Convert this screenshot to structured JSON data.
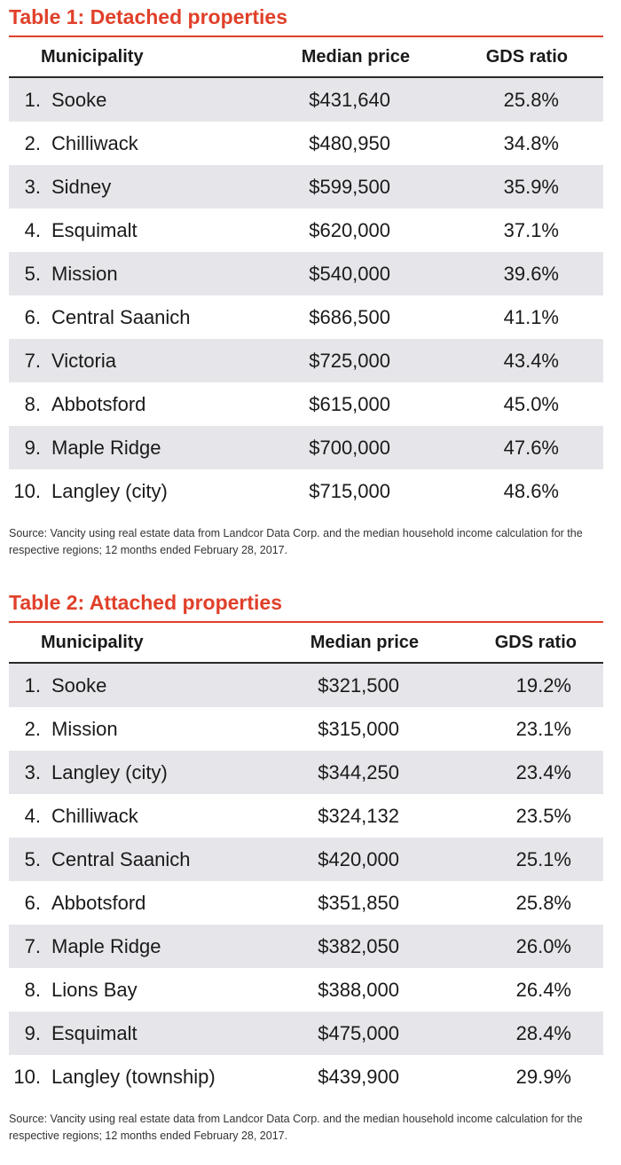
{
  "tables": [
    {
      "title": "Table 1: Detached properties",
      "headers": {
        "municipality": "Municipality",
        "median_price": "Median price",
        "gds_ratio": "GDS ratio"
      },
      "rows": [
        {
          "rank": "1.",
          "municipality": "Sooke",
          "price": "$431,640",
          "gds": "25.8%"
        },
        {
          "rank": "2.",
          "municipality": "Chilliwack",
          "price": "$480,950",
          "gds": "34.8%"
        },
        {
          "rank": "3.",
          "municipality": "Sidney",
          "price": "$599,500",
          "gds": "35.9%"
        },
        {
          "rank": "4.",
          "municipality": "Esquimalt",
          "price": "$620,000",
          "gds": "37.1%"
        },
        {
          "rank": "5.",
          "municipality": "Mission",
          "price": "$540,000",
          "gds": "39.6%"
        },
        {
          "rank": "6.",
          "municipality": "Central Saanich",
          "price": "$686,500",
          "gds": "41.1%"
        },
        {
          "rank": "7.",
          "municipality": "Victoria",
          "price": "$725,000",
          "gds": "43.4%"
        },
        {
          "rank": "8.",
          "municipality": "Abbotsford",
          "price": "$615,000",
          "gds": "45.0%"
        },
        {
          "rank": "9.",
          "municipality": "Maple Ridge",
          "price": "$700,000",
          "gds": "47.6%"
        },
        {
          "rank": "10.",
          "municipality": "Langley (city)",
          "price": "$715,000",
          "gds": "48.6%"
        }
      ],
      "source": "Source: Vancity using real estate data from Landcor Data Corp. and the median household income calculation for the respective regions; 12 months ended February 28, 2017."
    },
    {
      "title": "Table 2: Attached properties",
      "headers": {
        "municipality": "Municipality",
        "median_price": "Median price",
        "gds_ratio": "GDS ratio"
      },
      "rows": [
        {
          "rank": "1.",
          "municipality": "Sooke",
          "price": "$321,500",
          "gds": "19.2%"
        },
        {
          "rank": "2.",
          "municipality": "Mission",
          "price": "$315,000",
          "gds": "23.1%"
        },
        {
          "rank": "3.",
          "municipality": "Langley (city)",
          "price": "$344,250",
          "gds": "23.4%"
        },
        {
          "rank": "4.",
          "municipality": "Chilliwack",
          "price": "$324,132",
          "gds": "23.5%"
        },
        {
          "rank": "5.",
          "municipality": "Central Saanich",
          "price": "$420,000",
          "gds": "25.1%"
        },
        {
          "rank": "6.",
          "municipality": "Abbotsford",
          "price": "$351,850",
          "gds": "25.8%"
        },
        {
          "rank": "7.",
          "municipality": "Maple Ridge",
          "price": "$382,050",
          "gds": "26.0%"
        },
        {
          "rank": "8.",
          "municipality": "Lions Bay",
          "price": "$388,000",
          "gds": "26.4%"
        },
        {
          "rank": "9.",
          "municipality": "Esquimalt",
          "price": "$475,000",
          "gds": "28.4%"
        },
        {
          "rank": "10.",
          "municipality": "Langley (township)",
          "price": "$439,900",
          "gds": "29.9%"
        }
      ],
      "source": "Source: Vancity using real estate data from Landcor Data Corp. and the median household income calculation for the respective regions; 12 months ended February 28, 2017."
    }
  ],
  "colors": {
    "accent": "#e0402a",
    "row_shade": "#e6e6ea",
    "rule": "#2a2a2a"
  }
}
